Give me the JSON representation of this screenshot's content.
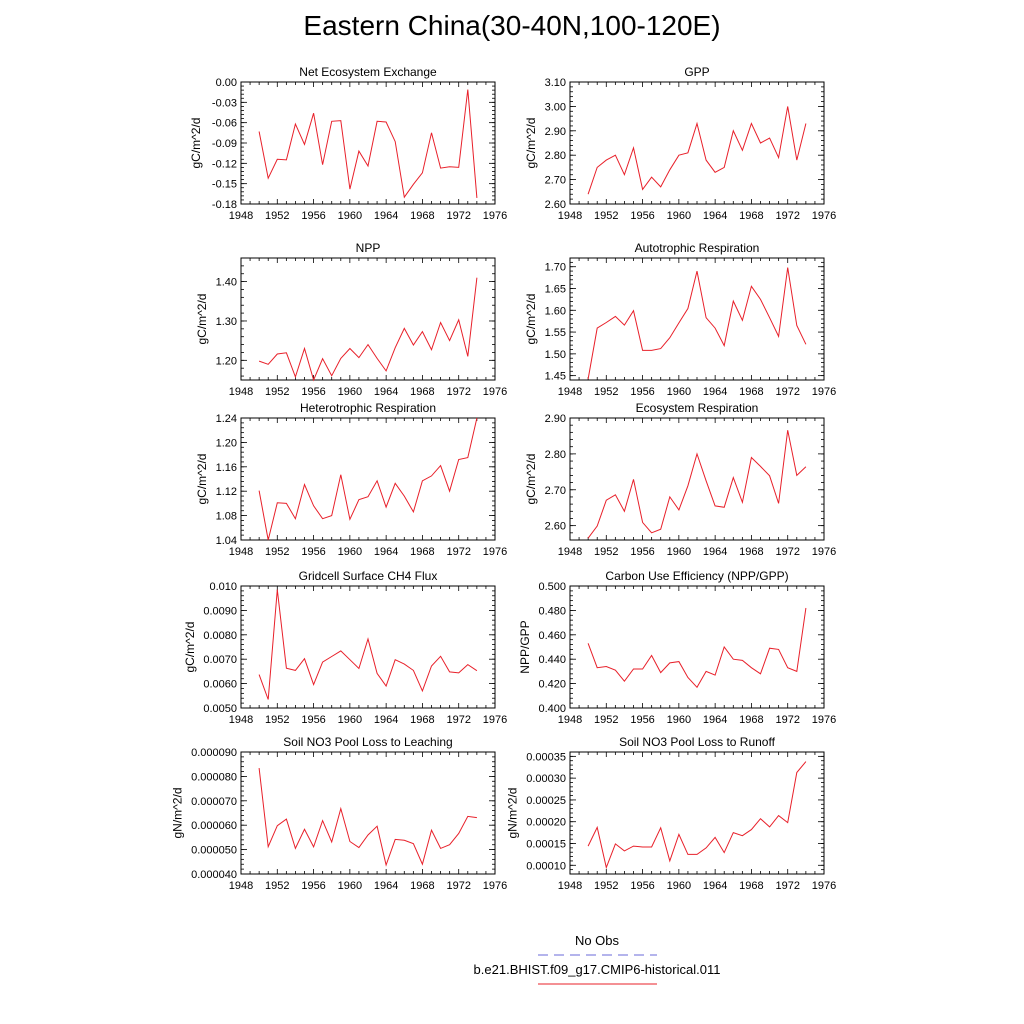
{
  "title": "Eastern China(30-40N,100-120E)",
  "legend": [
    {
      "label": "No Obs",
      "color": "#6a6ad8",
      "dash": "dashed"
    },
    {
      "label": "b.e21.BHIST.f09_g17.CMIP6-historical.011",
      "color": "#e8202a",
      "dash": "solid"
    }
  ],
  "chart_data": [
    {
      "type": "line",
      "title": "Net Ecosystem Exchange",
      "ylabel": "gC/m^2/d",
      "xlim": [
        1948,
        1976
      ],
      "xticks": [
        "1948",
        "1952",
        "1956",
        "1960",
        "1964",
        "1968",
        "1972",
        "1976"
      ],
      "ylim": [
        -0.18,
        0.0
      ],
      "yticks": [
        "-0.18",
        "-0.15",
        "-0.12",
        "-0.09",
        "-0.06",
        "-0.03",
        "0.00"
      ],
      "x": [
        1950,
        1951,
        1952,
        1953,
        1954,
        1955,
        1956,
        1957,
        1958,
        1959,
        1960,
        1961,
        1962,
        1963,
        1964,
        1965,
        1966,
        1967,
        1968,
        1969,
        1970,
        1971,
        1972,
        1973,
        1974
      ],
      "series": [
        {
          "color": "#e8202a",
          "values": [
            -0.073,
            -0.142,
            -0.114,
            -0.115,
            -0.062,
            -0.092,
            -0.046,
            -0.122,
            -0.058,
            -0.057,
            -0.158,
            -0.102,
            -0.124,
            -0.058,
            -0.059,
            -0.088,
            -0.17,
            -0.151,
            -0.134,
            -0.075,
            -0.127,
            -0.125,
            -0.126,
            -0.011,
            -0.171
          ]
        }
      ]
    },
    {
      "type": "line",
      "title": "GPP",
      "ylabel": "gC/m^2/d",
      "xlim": [
        1948,
        1976
      ],
      "xticks": [
        "1948",
        "1952",
        "1956",
        "1960",
        "1964",
        "1968",
        "1972",
        "1976"
      ],
      "ylim": [
        2.6,
        3.1
      ],
      "yticks": [
        "2.60",
        "2.70",
        "2.80",
        "2.90",
        "3.00",
        "3.10"
      ],
      "x": [
        1950,
        1951,
        1952,
        1953,
        1954,
        1955,
        1956,
        1957,
        1958,
        1959,
        1960,
        1961,
        1962,
        1963,
        1964,
        1965,
        1966,
        1967,
        1968,
        1969,
        1970,
        1971,
        1972,
        1973,
        1974
      ],
      "series": [
        {
          "color": "#e8202a",
          "values": [
            2.64,
            2.75,
            2.78,
            2.8,
            2.72,
            2.83,
            2.66,
            2.71,
            2.67,
            2.74,
            2.8,
            2.81,
            2.93,
            2.78,
            2.73,
            2.75,
            2.9,
            2.82,
            2.93,
            2.85,
            2.87,
            2.79,
            3.0,
            2.78,
            2.93
          ]
        }
      ]
    },
    {
      "type": "line",
      "title": "NPP",
      "ylabel": "gC/m^2/d",
      "xlim": [
        1948,
        1976
      ],
      "xticks": [
        "1948",
        "1952",
        "1956",
        "1960",
        "1964",
        "1968",
        "1972",
        "1976"
      ],
      "ylim": [
        1.15,
        1.46
      ],
      "yticks": [
        "1.20",
        "1.30",
        "1.40"
      ],
      "x": [
        1950,
        1951,
        1952,
        1953,
        1954,
        1955,
        1956,
        1957,
        1958,
        1959,
        1960,
        1961,
        1962,
        1963,
        1964,
        1965,
        1966,
        1967,
        1968,
        1969,
        1970,
        1971,
        1972,
        1973,
        1974
      ],
      "series": [
        {
          "color": "#e8202a",
          "values": [
            1.198,
            1.19,
            1.216,
            1.219,
            1.158,
            1.23,
            1.15,
            1.204,
            1.161,
            1.205,
            1.23,
            1.207,
            1.24,
            1.205,
            1.173,
            1.232,
            1.281,
            1.239,
            1.273,
            1.227,
            1.296,
            1.25,
            1.303,
            1.21,
            1.41
          ]
        }
      ]
    },
    {
      "type": "line",
      "title": "Autotrophic Respiration",
      "ylabel": "gC/m^2/d",
      "xlim": [
        1948,
        1976
      ],
      "xticks": [
        "1948",
        "1952",
        "1956",
        "1960",
        "1964",
        "1968",
        "1972",
        "1976"
      ],
      "ylim": [
        1.44,
        1.72
      ],
      "yticks": [
        "1.45",
        "1.50",
        "1.55",
        "1.60",
        "1.65",
        "1.70"
      ],
      "x": [
        1950,
        1951,
        1952,
        1953,
        1954,
        1955,
        1956,
        1957,
        1958,
        1959,
        1960,
        1961,
        1962,
        1963,
        1964,
        1965,
        1966,
        1967,
        1968,
        1969,
        1970,
        1971,
        1972,
        1973,
        1974
      ],
      "series": [
        {
          "color": "#e8202a",
          "values": [
            1.442,
            1.559,
            1.572,
            1.586,
            1.566,
            1.599,
            1.508,
            1.508,
            1.512,
            1.537,
            1.571,
            1.604,
            1.69,
            1.583,
            1.559,
            1.519,
            1.621,
            1.577,
            1.655,
            1.625,
            1.583,
            1.54,
            1.698,
            1.565,
            1.522
          ]
        }
      ]
    },
    {
      "type": "line",
      "title": "Heterotrophic Respiration",
      "ylabel": "gC/m^2/d",
      "xlim": [
        1948,
        1976
      ],
      "xticks": [
        "1948",
        "1952",
        "1956",
        "1960",
        "1964",
        "1968",
        "1972",
        "1976"
      ],
      "ylim": [
        1.04,
        1.24
      ],
      "yticks": [
        "1.04",
        "1.08",
        "1.12",
        "1.16",
        "1.20",
        "1.24"
      ],
      "x": [
        1950,
        1951,
        1952,
        1953,
        1954,
        1955,
        1956,
        1957,
        1958,
        1959,
        1960,
        1961,
        1962,
        1963,
        1964,
        1965,
        1966,
        1967,
        1968,
        1969,
        1970,
        1971,
        1972,
        1973,
        1974
      ],
      "series": [
        {
          "color": "#e8202a",
          "values": [
            1.121,
            1.04,
            1.101,
            1.1,
            1.075,
            1.131,
            1.096,
            1.075,
            1.08,
            1.147,
            1.074,
            1.106,
            1.111,
            1.137,
            1.094,
            1.133,
            1.112,
            1.086,
            1.137,
            1.145,
            1.162,
            1.12,
            1.172,
            1.175,
            1.24
          ]
        }
      ]
    },
    {
      "type": "line",
      "title": "Ecosystem Respiration",
      "ylabel": "gC/m^2/d",
      "xlim": [
        1948,
        1976
      ],
      "xticks": [
        "1948",
        "1952",
        "1956",
        "1960",
        "1964",
        "1968",
        "1972",
        "1976"
      ],
      "ylim": [
        2.56,
        2.9
      ],
      "yticks": [
        "2.60",
        "2.70",
        "2.80",
        "2.90"
      ],
      "x": [
        1950,
        1951,
        1952,
        1953,
        1954,
        1955,
        1956,
        1957,
        1958,
        1959,
        1960,
        1961,
        1962,
        1963,
        1964,
        1965,
        1966,
        1967,
        1968,
        1969,
        1970,
        1971,
        1972,
        1973,
        1974
      ],
      "series": [
        {
          "color": "#e8202a",
          "values": [
            2.565,
            2.599,
            2.671,
            2.686,
            2.64,
            2.729,
            2.609,
            2.58,
            2.59,
            2.68,
            2.644,
            2.711,
            2.8,
            2.725,
            2.655,
            2.651,
            2.734,
            2.665,
            2.79,
            2.765,
            2.739,
            2.662,
            2.866,
            2.74,
            2.764
          ]
        }
      ]
    },
    {
      "type": "line",
      "title": "Gridcell Surface CH4 Flux",
      "ylabel": "gC/m^2/d",
      "xlim": [
        1948,
        1976
      ],
      "xticks": [
        "1948",
        "1952",
        "1956",
        "1960",
        "1964",
        "1968",
        "1972",
        "1976"
      ],
      "ylim": [
        0.005,
        0.01
      ],
      "yticks": [
        "0.0050",
        "0.0060",
        "0.0070",
        "0.0080",
        "0.0090",
        "0.010"
      ],
      "x": [
        1950,
        1951,
        1952,
        1953,
        1954,
        1955,
        1956,
        1957,
        1958,
        1959,
        1960,
        1961,
        1962,
        1963,
        1964,
        1965,
        1966,
        1967,
        1968,
        1969,
        1970,
        1971,
        1972,
        1973,
        1974
      ],
      "series": [
        {
          "color": "#e8202a",
          "values": [
            0.00637,
            0.00535,
            0.00985,
            0.00663,
            0.00654,
            0.00702,
            0.00596,
            0.00688,
            0.00711,
            0.00734,
            0.00698,
            0.00662,
            0.00783,
            0.00642,
            0.0059,
            0.00698,
            0.0068,
            0.00654,
            0.0057,
            0.00672,
            0.00712,
            0.00648,
            0.00644,
            0.00678,
            0.00653
          ]
        }
      ]
    },
    {
      "type": "line",
      "title": "Carbon Use Efficiency (NPP/GPP)",
      "ylabel": "NPP/GPP",
      "xlim": [
        1948,
        1976
      ],
      "xticks": [
        "1948",
        "1952",
        "1956",
        "1960",
        "1964",
        "1968",
        "1972",
        "1976"
      ],
      "ylim": [
        0.4,
        0.5
      ],
      "yticks": [
        "0.400",
        "0.420",
        "0.440",
        "0.460",
        "0.480",
        "0.500"
      ],
      "x": [
        1950,
        1951,
        1952,
        1953,
        1954,
        1955,
        1956,
        1957,
        1958,
        1959,
        1960,
        1961,
        1962,
        1963,
        1964,
        1965,
        1966,
        1967,
        1968,
        1969,
        1970,
        1971,
        1972,
        1973,
        1974
      ],
      "series": [
        {
          "color": "#e8202a",
          "values": [
            0.453,
            0.433,
            0.434,
            0.431,
            0.422,
            0.432,
            0.432,
            0.443,
            0.429,
            0.437,
            0.438,
            0.425,
            0.417,
            0.43,
            0.427,
            0.45,
            0.44,
            0.439,
            0.433,
            0.428,
            0.449,
            0.448,
            0.433,
            0.43,
            0.482
          ]
        }
      ]
    },
    {
      "type": "line",
      "title": "Soil NO3 Pool Loss to Leaching",
      "ylabel": "gN/m^2/d",
      "xlim": [
        1948,
        1976
      ],
      "xticks": [
        "1948",
        "1952",
        "1956",
        "1960",
        "1964",
        "1968",
        "1972",
        "1976"
      ],
      "ylim": [
        4e-05,
        9e-05
      ],
      "yticks": [
        "0.000040",
        "0.000050",
        "0.000060",
        "0.000070",
        "0.000080",
        "0.000090"
      ],
      "x": [
        1950,
        1951,
        1952,
        1953,
        1954,
        1955,
        1956,
        1957,
        1958,
        1959,
        1960,
        1961,
        1962,
        1963,
        1964,
        1965,
        1966,
        1967,
        1968,
        1969,
        1970,
        1971,
        1972,
        1973,
        1974
      ],
      "series": [
        {
          "color": "#e8202a",
          "values": [
            8.34e-05,
            5.12e-05,
            5.98e-05,
            6.25e-05,
            5.05e-05,
            5.83e-05,
            5.11e-05,
            6.19e-05,
            5.31e-05,
            6.68e-05,
            5.33e-05,
            5.08e-05,
            5.6e-05,
            5.96e-05,
            4.37e-05,
            5.42e-05,
            5.38e-05,
            5.24e-05,
            4.4e-05,
            5.8e-05,
            5.05e-05,
            5.2e-05,
            5.66e-05,
            6.36e-05,
            6.31e-05
          ]
        }
      ]
    },
    {
      "type": "line",
      "title": "Soil NO3 Pool Loss to Runoff",
      "ylabel": "gN/m^2/d",
      "xlim": [
        1948,
        1976
      ],
      "xticks": [
        "1948",
        "1952",
        "1956",
        "1960",
        "1964",
        "1968",
        "1972",
        "1976"
      ],
      "ylim": [
        8e-05,
        0.00036
      ],
      "yticks": [
        "0.00010",
        "0.00015",
        "0.00020",
        "0.00025",
        "0.00030",
        "0.00035"
      ],
      "x": [
        1950,
        1951,
        1952,
        1953,
        1954,
        1955,
        1956,
        1957,
        1958,
        1959,
        1960,
        1961,
        1962,
        1963,
        1964,
        1965,
        1966,
        1967,
        1968,
        1969,
        1970,
        1971,
        1972,
        1973,
        1974
      ],
      "series": [
        {
          "color": "#e8202a",
          "values": [
            0.000144,
            0.000187,
            9.5e-05,
            0.000149,
            0.000133,
            0.000144,
            0.000142,
            0.000142,
            0.000186,
            0.00011,
            0.000171,
            0.000125,
            0.000125,
            0.00014,
            0.000164,
            0.000129,
            0.000175,
            0.000168,
            0.000182,
            0.000207,
            0.000188,
            0.000214,
            0.000198,
            0.000313,
            0.000338
          ]
        }
      ]
    }
  ]
}
